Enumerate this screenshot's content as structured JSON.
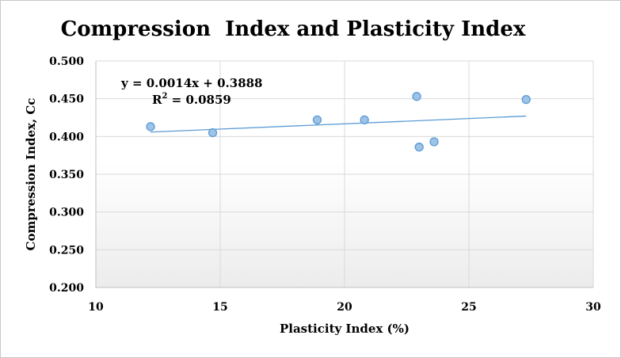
{
  "chart_data": {
    "type": "scatter",
    "title": "Compression  Index and Plasticity Index",
    "xlabel": "Plasticity Index (%)",
    "ylabel": "Compression Index, Cc",
    "xlim": [
      10,
      30
    ],
    "ylim": [
      0.2,
      0.5
    ],
    "x_ticks": [
      "10",
      "15",
      "20",
      "25",
      "30"
    ],
    "y_ticks": [
      "0.200",
      "0.250",
      "0.300",
      "0.350",
      "0.400",
      "0.450",
      "0.500"
    ],
    "grid": true,
    "legend": "none",
    "series": [
      {
        "points": [
          {
            "x": 12.2,
            "y": 0.413
          },
          {
            "x": 14.7,
            "y": 0.405
          },
          {
            "x": 18.9,
            "y": 0.422
          },
          {
            "x": 20.8,
            "y": 0.422
          },
          {
            "x": 22.9,
            "y": 0.453
          },
          {
            "x": 23.0,
            "y": 0.386
          },
          {
            "x": 23.6,
            "y": 0.393
          },
          {
            "x": 27.3,
            "y": 0.449
          }
        ]
      }
    ],
    "trendline": {
      "type": "linear",
      "slope": 0.0014,
      "intercept": 0.3888,
      "x_range": [
        12.2,
        27.3
      ],
      "equation": "y = 0.0014x + 0.3888",
      "r2_prefix": "R",
      "r2_sup": "2",
      "r2_value": " = 0.0859"
    },
    "colors": {
      "marker_fill": "#9dc3e6",
      "marker_stroke": "#5b9bd5",
      "trendline": "#5b9bd5",
      "gridline": "#d9d9d9"
    }
  }
}
